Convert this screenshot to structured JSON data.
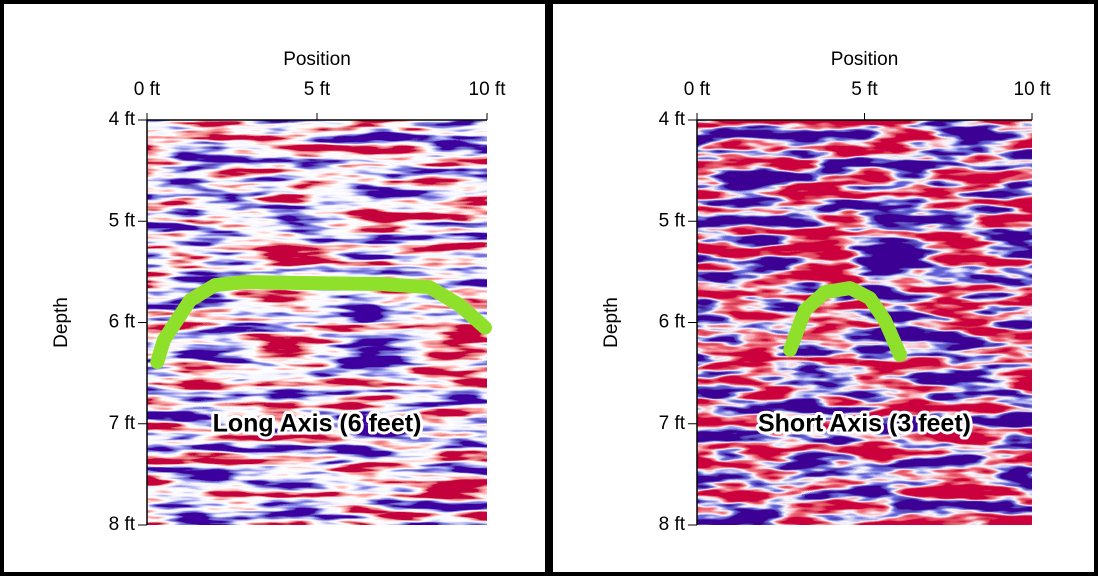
{
  "chart_data": [
    {
      "type": "line",
      "x_label": "Position",
      "y_label": "Depth",
      "annotation": "Long Axis (6 feet)",
      "xlim": [
        0,
        10
      ],
      "ylim": [
        4,
        8
      ],
      "y_inverted": true,
      "xticks": [
        {
          "value": 0,
          "label": "0 ft"
        },
        {
          "value": 5,
          "label": "5 ft"
        },
        {
          "value": 10,
          "label": "10 ft"
        }
      ],
      "yticks": [
        {
          "value": 4,
          "label": "4 ft"
        },
        {
          "value": 5,
          "label": "5 ft"
        },
        {
          "value": 6,
          "label": "6 ft"
        },
        {
          "value": 7,
          "label": "7 ft"
        },
        {
          "value": 8,
          "label": "8 ft"
        }
      ],
      "series": [
        {
          "color": "#8ee02a",
          "x": [
            0.3,
            0.5,
            1.27,
            2.0,
            2.9,
            4.5,
            6.85,
            8.3,
            9.2,
            9.94
          ],
          "values": [
            6.39,
            6.17,
            5.78,
            5.63,
            5.6,
            5.61,
            5.62,
            5.65,
            5.83,
            6.05
          ]
        }
      ]
    },
    {
      "type": "line",
      "x_label": "Position",
      "y_label": "Depth",
      "annotation": "Short Axis (3 feet)",
      "xlim": [
        0,
        10
      ],
      "ylim": [
        4,
        8
      ],
      "y_inverted": true,
      "xticks": [
        {
          "value": 0,
          "label": "0 ft"
        },
        {
          "value": 5,
          "label": "5 ft"
        },
        {
          "value": 10,
          "label": "10 ft"
        }
      ],
      "yticks": [
        {
          "value": 4,
          "label": "4 ft"
        },
        {
          "value": 5,
          "label": "5 ft"
        },
        {
          "value": 6,
          "label": "6 ft"
        },
        {
          "value": 7,
          "label": "7 ft"
        },
        {
          "value": 8,
          "label": "8 ft"
        }
      ],
      "series": [
        {
          "color": "#8ee02a",
          "x": [
            2.78,
            3.22,
            3.82,
            4.57,
            5.16,
            5.61,
            6.06
          ],
          "values": [
            6.27,
            5.88,
            5.7,
            5.66,
            5.76,
            5.98,
            6.32
          ]
        }
      ]
    }
  ]
}
